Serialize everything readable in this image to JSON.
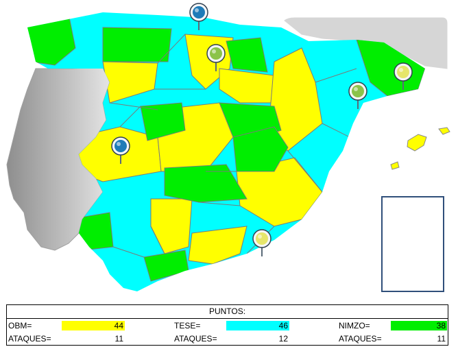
{
  "map": {
    "colors": {
      "yellow": "#ffff00",
      "cyan": "#00ffff",
      "green": "#00ee00",
      "grey": "#bdbdbd",
      "border": "#888888"
    },
    "markers": [
      {
        "name": "marker-blue",
        "color": "#1e7bb8"
      },
      {
        "name": "marker-green",
        "color": "#8bc34a"
      },
      {
        "name": "marker-green",
        "color": "#8bc34a"
      },
      {
        "name": "marker-yellow",
        "color": "#e6e66b"
      },
      {
        "name": "marker-blue",
        "color": "#1e7bb8"
      },
      {
        "name": "marker-yellow",
        "color": "#e6e66b"
      }
    ]
  },
  "scoreboard": {
    "title": "PUNTOS:",
    "players": [
      {
        "name": "OBM=",
        "points": "44",
        "attacks_label": "ATAQUES=",
        "attacks": "11",
        "color": "#ffff00"
      },
      {
        "name": "TESE=",
        "points": "46",
        "attacks_label": "ATAQUES=",
        "attacks": "12",
        "color": "#00ffff"
      },
      {
        "name": "NIMZO=",
        "points": "38",
        "attacks_label": "ATAQUES=",
        "attacks": "11",
        "color": "#00ee00"
      }
    ]
  }
}
